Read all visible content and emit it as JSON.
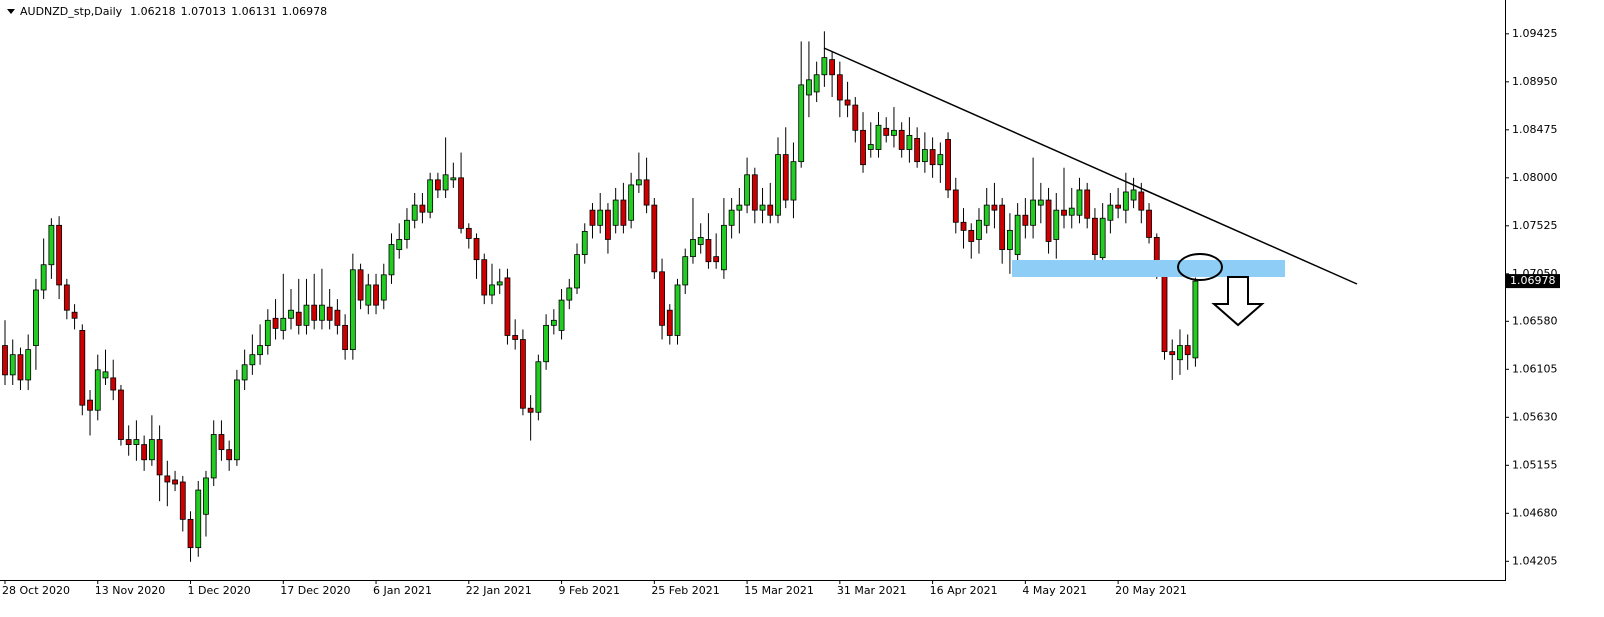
{
  "chart_data": {
    "type": "candlestick",
    "title": "AUDNZD_stp,Daily",
    "up_color": "#22cc22",
    "down_color": "#cc0000",
    "ylim": [
      1.0402,
      1.0974
    ],
    "yticks": [
      1.09425,
      {
        "value": 1.0895,
        "label": "1.08950"
      },
      1.08475,
      {
        "value": 1.08,
        "label": "1.08000"
      },
      1.07525,
      {
        "value": 1.0705,
        "label": "1.07050"
      },
      {
        "value": 1.0658,
        "label": "1.06580"
      },
      1.06105,
      {
        "value": 1.0563,
        "label": "1.05630"
      },
      1.05155,
      {
        "value": 1.0468,
        "label": "1.04680"
      },
      1.04205
    ],
    "categories": [
      "28 Oct 2020",
      null,
      null,
      null,
      null,
      null,
      null,
      null,
      null,
      null,
      null,
      null,
      "13 Nov 2020",
      null,
      null,
      null,
      null,
      null,
      null,
      null,
      null,
      null,
      null,
      null,
      "1 Dec 2020",
      null,
      null,
      null,
      null,
      null,
      null,
      null,
      null,
      null,
      null,
      null,
      "17 Dec 2020",
      null,
      null,
      null,
      null,
      null,
      null,
      null,
      null,
      null,
      null,
      null,
      "6 Jan 2021",
      null,
      null,
      null,
      null,
      null,
      null,
      null,
      null,
      null,
      null,
      null,
      "22 Jan 2021",
      null,
      null,
      null,
      null,
      null,
      null,
      null,
      null,
      null,
      null,
      null,
      "9 Feb 2021",
      null,
      null,
      null,
      null,
      null,
      null,
      null,
      null,
      null,
      null,
      null,
      "25 Feb 2021",
      null,
      null,
      null,
      null,
      null,
      null,
      null,
      null,
      null,
      null,
      null,
      "15 Mar 2021",
      null,
      null,
      null,
      null,
      null,
      null,
      null,
      null,
      null,
      null,
      null,
      "31 Mar 2021",
      null,
      null,
      null,
      null,
      null,
      null,
      null,
      null,
      null,
      null,
      null,
      "16 Apr 2021",
      null,
      null,
      null,
      null,
      null,
      null,
      null,
      null,
      null,
      null,
      null,
      "4 May 2021",
      null,
      null,
      null,
      null,
      null,
      null,
      null,
      null,
      null,
      null,
      null,
      "20 May 2021",
      null,
      null,
      null,
      null,
      null,
      null,
      null,
      null,
      null,
      null
    ],
    "ohlc": [
      [
        1.0634,
        1.0659,
        1.0595,
        1.0605
      ],
      [
        1.0605,
        1.064,
        1.0595,
        1.0625
      ],
      [
        1.0625,
        1.0632,
        1.059,
        1.06
      ],
      [
        1.06,
        1.0645,
        1.059,
        1.063
      ],
      [
        1.0634,
        1.07,
        1.061,
        1.0689
      ],
      [
        1.0689,
        1.074,
        1.068,
        1.0714
      ],
      [
        1.0714,
        1.076,
        1.07,
        1.0753
      ],
      [
        1.0753,
        1.0762,
        1.068,
        1.0694
      ],
      [
        1.0694,
        1.07,
        1.066,
        1.0669
      ],
      [
        1.0667,
        1.0675,
        1.065,
        1.0661
      ],
      [
        1.0649,
        1.0655,
        1.0565,
        1.0575
      ],
      [
        1.058,
        1.059,
        1.0545,
        1.057
      ],
      [
        1.057,
        1.0625,
        1.056,
        1.061
      ],
      [
        1.0602,
        1.063,
        1.0595,
        1.0608
      ],
      [
        1.0602,
        1.062,
        1.058,
        1.059
      ],
      [
        1.059,
        1.0595,
        1.0535,
        1.0541
      ],
      [
        1.0541,
        1.0555,
        1.0525,
        1.0536
      ],
      [
        1.0536,
        1.056,
        1.052,
        1.0541
      ],
      [
        1.0536,
        1.0545,
        1.051,
        1.0521
      ],
      [
        1.0521,
        1.0565,
        1.0515,
        1.0541
      ],
      [
        1.0541,
        1.0555,
        1.048,
        1.0506
      ],
      [
        1.0505,
        1.052,
        1.0475,
        1.0499
      ],
      [
        1.0501,
        1.051,
        1.049,
        1.0497
      ],
      [
        1.0499,
        1.0505,
        1.045,
        1.0462
      ],
      [
        1.0462,
        1.047,
        1.042,
        1.0434
      ],
      [
        1.0434,
        1.05,
        1.0425,
        1.0491
      ],
      [
        1.0467,
        1.051,
        1.0445,
        1.0503
      ],
      [
        1.0503,
        1.056,
        1.0495,
        1.0546
      ],
      [
        1.0546,
        1.056,
        1.052,
        1.0531
      ],
      [
        1.0531,
        1.054,
        1.051,
        1.0521
      ],
      [
        1.0521,
        1.061,
        1.0515,
        1.06
      ],
      [
        1.06,
        1.063,
        1.059,
        1.0615
      ],
      [
        1.0615,
        1.0645,
        1.0605,
        1.0625
      ],
      [
        1.0625,
        1.0655,
        1.0615,
        1.0634
      ],
      [
        1.0634,
        1.067,
        1.0625,
        1.0659
      ],
      [
        1.0661,
        1.068,
        1.064,
        1.0651
      ],
      [
        1.0649,
        1.0705,
        1.064,
        1.0661
      ],
      [
        1.0661,
        1.069,
        1.065,
        1.0669
      ],
      [
        1.0667,
        1.07,
        1.0645,
        1.0654
      ],
      [
        1.0654,
        1.07,
        1.0645,
        1.0674
      ],
      [
        1.0674,
        1.0705,
        1.065,
        1.0659
      ],
      [
        1.0659,
        1.071,
        1.065,
        1.0674
      ],
      [
        1.0672,
        1.069,
        1.065,
        1.0659
      ],
      [
        1.0669,
        1.068,
        1.0645,
        1.0654
      ],
      [
        1.0654,
        1.0665,
        1.062,
        1.063
      ],
      [
        1.063,
        1.0725,
        1.062,
        1.0709
      ],
      [
        1.0709,
        1.0715,
        1.067,
        1.0679
      ],
      [
        1.0674,
        1.0705,
        1.0665,
        1.0694
      ],
      [
        1.0694,
        1.0705,
        1.0665,
        1.0674
      ],
      [
        1.0679,
        1.0715,
        1.067,
        1.0704
      ],
      [
        1.0704,
        1.0745,
        1.0695,
        1.0734
      ],
      [
        1.0729,
        1.0755,
        1.072,
        1.0739
      ],
      [
        1.0739,
        1.077,
        1.073,
        1.0758
      ],
      [
        1.0758,
        1.0785,
        1.075,
        1.0773
      ],
      [
        1.0773,
        1.0785,
        1.0755,
        1.0766
      ],
      [
        1.0766,
        1.0805,
        1.076,
        1.0798
      ],
      [
        1.0798,
        1.0805,
        1.078,
        1.0788
      ],
      [
        1.0788,
        1.084,
        1.078,
        1.0803
      ],
      [
        1.0798,
        1.0815,
        1.079,
        1.08
      ],
      [
        1.08,
        1.0825,
        1.0745,
        1.075
      ],
      [
        1.075,
        1.0755,
        1.073,
        1.074
      ],
      [
        1.074,
        1.0745,
        1.07,
        1.0719
      ],
      [
        1.0719,
        1.0725,
        1.0675,
        1.0684
      ],
      [
        1.0684,
        1.0715,
        1.0675,
        1.0694
      ],
      [
        1.0694,
        1.071,
        1.0685,
        1.0697
      ],
      [
        1.0701,
        1.071,
        1.0635,
        1.0644
      ],
      [
        1.0644,
        1.066,
        1.063,
        1.064
      ],
      [
        1.064,
        1.065,
        1.0565,
        1.0572
      ],
      [
        1.0572,
        1.0585,
        1.054,
        1.0568
      ],
      [
        1.0568,
        1.0625,
        1.056,
        1.0618
      ],
      [
        1.0618,
        1.0665,
        1.061,
        1.0654
      ],
      [
        1.0654,
        1.067,
        1.0645,
        1.0659
      ],
      [
        1.0649,
        1.069,
        1.064,
        1.0679
      ],
      [
        1.0679,
        1.07,
        1.067,
        1.0691
      ],
      [
        1.0691,
        1.0735,
        1.0685,
        1.0724
      ],
      [
        1.0724,
        1.0755,
        1.0715,
        1.0747
      ],
      [
        1.0768,
        1.0775,
        1.074,
        1.0753
      ],
      [
        1.0753,
        1.0785,
        1.0745,
        1.0768
      ],
      [
        1.0768,
        1.0775,
        1.0725,
        1.0739
      ],
      [
        1.0753,
        1.079,
        1.0745,
        1.0778
      ],
      [
        1.0778,
        1.0795,
        1.0745,
        1.0753
      ],
      [
        1.0758,
        1.0805,
        1.075,
        1.0793
      ],
      [
        1.0793,
        1.0825,
        1.0785,
        1.0798
      ],
      [
        1.0798,
        1.082,
        1.0765,
        1.0773
      ],
      [
        1.0773,
        1.078,
        1.07,
        1.0707
      ],
      [
        1.0707,
        1.072,
        1.064,
        1.0654
      ],
      [
        1.0669,
        1.0675,
        1.0635,
        1.0644
      ],
      [
        1.0644,
        1.07,
        1.0635,
        1.0694
      ],
      [
        1.0694,
        1.073,
        1.0685,
        1.0722
      ],
      [
        1.0722,
        1.078,
        1.0715,
        1.0739
      ],
      [
        1.0734,
        1.0755,
        1.0725,
        1.0741
      ],
      [
        1.0739,
        1.0765,
        1.071,
        1.0717
      ],
      [
        1.0722,
        1.0745,
        1.071,
        1.0717
      ],
      [
        1.0709,
        1.078,
        1.07,
        1.0753
      ],
      [
        1.0753,
        1.078,
        1.074,
        1.0768
      ],
      [
        1.0768,
        1.079,
        1.0745,
        1.0773
      ],
      [
        1.0773,
        1.082,
        1.0765,
        1.0803
      ],
      [
        1.0803,
        1.081,
        1.0755,
        1.0768
      ],
      [
        1.0768,
        1.079,
        1.0755,
        1.0773
      ],
      [
        1.0773,
        1.0795,
        1.0755,
        1.0763
      ],
      [
        1.0763,
        1.084,
        1.0755,
        1.0823
      ],
      [
        1.0823,
        1.085,
        1.077,
        1.0778
      ],
      [
        1.0778,
        1.0835,
        1.076,
        1.0816
      ],
      [
        1.0816,
        1.0935,
        1.081,
        1.0892
      ],
      [
        1.0882,
        1.0935,
        1.086,
        1.0897
      ],
      [
        1.0885,
        1.0915,
        1.0875,
        1.0902
      ],
      [
        1.0902,
        1.0945,
        1.089,
        1.0919
      ],
      [
        1.0917,
        1.0925,
        1.088,
        1.0902
      ],
      [
        1.0902,
        1.0915,
        1.086,
        1.0877
      ],
      [
        1.0877,
        1.0895,
        1.086,
        1.0872
      ],
      [
        1.0872,
        1.088,
        1.0835,
        1.0847
      ],
      [
        1.0847,
        1.0865,
        1.0805,
        1.0813
      ],
      [
        1.0828,
        1.0855,
        1.082,
        1.0833
      ],
      [
        1.0828,
        1.0865,
        1.082,
        1.0852
      ],
      [
        1.0849,
        1.086,
        1.0835,
        1.0842
      ],
      [
        1.0842,
        1.087,
        1.083,
        1.0847
      ],
      [
        1.0847,
        1.0855,
        1.082,
        1.0828
      ],
      [
        1.0828,
        1.086,
        1.0815,
        1.0842
      ],
      [
        1.0839,
        1.085,
        1.081,
        1.0816
      ],
      [
        1.0816,
        1.0845,
        1.0805,
        1.0828
      ],
      [
        1.0828,
        1.084,
        1.08,
        1.0813
      ],
      [
        1.0813,
        1.0835,
        1.0795,
        1.0823
      ],
      [
        1.0838,
        1.0845,
        1.078,
        1.0788
      ],
      [
        1.0788,
        1.08,
        1.0745,
        1.0756
      ],
      [
        1.0756,
        1.077,
        1.073,
        1.0748
      ],
      [
        1.0748,
        1.0755,
        1.072,
        1.0737
      ],
      [
        1.0739,
        1.077,
        1.0725,
        1.0758
      ],
      [
        1.0753,
        1.079,
        1.0745,
        1.0773
      ],
      [
        1.0773,
        1.0795,
        1.075,
        1.0768
      ],
      [
        1.0773,
        1.078,
        1.0715,
        1.0729
      ],
      [
        1.0729,
        1.0765,
        1.0705,
        1.0748
      ],
      [
        1.0724,
        1.0775,
        1.0715,
        1.0763
      ],
      [
        1.0763,
        1.078,
        1.074,
        1.0753
      ],
      [
        1.0753,
        1.082,
        1.074,
        1.0778
      ],
      [
        1.0773,
        1.0795,
        1.0755,
        1.0778
      ],
      [
        1.0778,
        1.079,
        1.0725,
        1.0737
      ],
      [
        1.0739,
        1.0785,
        1.072,
        1.0768
      ],
      [
        1.0768,
        1.081,
        1.075,
        1.0763
      ],
      [
        1.0763,
        1.079,
        1.075,
        1.077
      ],
      [
        1.0763,
        1.08,
        1.0755,
        1.0788
      ],
      [
        1.0788,
        1.0795,
        1.075,
        1.076
      ],
      [
        1.076,
        1.077,
        1.071,
        1.0724
      ],
      [
        1.0721,
        1.0775,
        1.071,
        1.076
      ],
      [
        1.0758,
        1.0785,
        1.0745,
        1.0773
      ],
      [
        1.0773,
        1.079,
        1.076,
        1.077
      ],
      [
        1.0768,
        1.0805,
        1.0755,
        1.0786
      ],
      [
        1.0778,
        1.08,
        1.077,
        1.0788
      ],
      [
        1.0786,
        1.0795,
        1.0755,
        1.0768
      ],
      [
        1.0768,
        1.0775,
        1.0735,
        1.0741
      ],
      [
        1.0741,
        1.0745,
        1.07,
        1.0707
      ],
      [
        1.0711,
        1.0715,
        1.062,
        1.0628
      ],
      [
        1.0628,
        1.064,
        1.06,
        1.0625
      ],
      [
        1.062,
        1.065,
        1.0605,
        1.0634
      ],
      [
        1.0634,
        1.0645,
        1.061,
        1.0625
      ],
      [
        1.06218,
        1.07013,
        1.06131,
        1.06978
      ]
    ]
  }
}
